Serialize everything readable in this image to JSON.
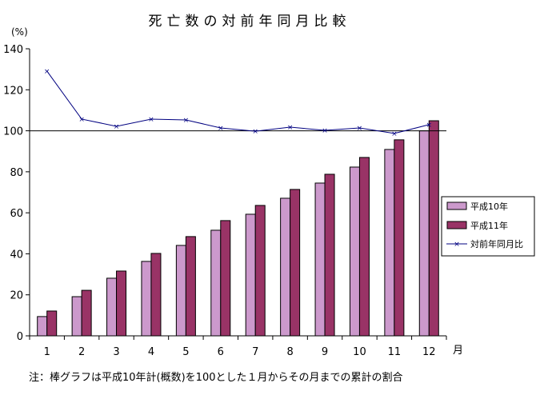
{
  "chart_data": {
    "type": "bar",
    "title": "死亡数の対前年同月比較",
    "ylabel": "(%)",
    "xlabel": "月",
    "ylim": [
      0,
      140
    ],
    "yticks": [
      0,
      20,
      40,
      60,
      80,
      100,
      120,
      140
    ],
    "reference_line": 100,
    "grid": false,
    "legend_placement": "right",
    "categories": [
      "1",
      "2",
      "3",
      "4",
      "5",
      "6",
      "7",
      "8",
      "9",
      "10",
      "11",
      "12"
    ],
    "series": [
      {
        "name": "平成10年",
        "type": "bar",
        "color": "#cc99cc",
        "values": [
          9.4,
          19.1,
          28.1,
          36.3,
          44.1,
          51.5,
          59.3,
          67.1,
          74.5,
          82.3,
          90.9,
          100.0
        ]
      },
      {
        "name": "平成11年",
        "type": "bar",
        "color": "#993366",
        "values": [
          12.1,
          22.2,
          31.6,
          40.2,
          48.4,
          56.2,
          63.6,
          71.4,
          78.8,
          87.0,
          95.6,
          104.9
        ]
      },
      {
        "name": "対前年同月比",
        "type": "line",
        "color": "#000080",
        "values": [
          129.1,
          105.7,
          102.2,
          105.7,
          105.3,
          101.4,
          99.8,
          101.8,
          100.2,
          101.4,
          98.7,
          103.0
        ]
      }
    ],
    "note": "注：棒グラフは平成10年計(概数)を100とした１月からその月までの累計の割合"
  }
}
